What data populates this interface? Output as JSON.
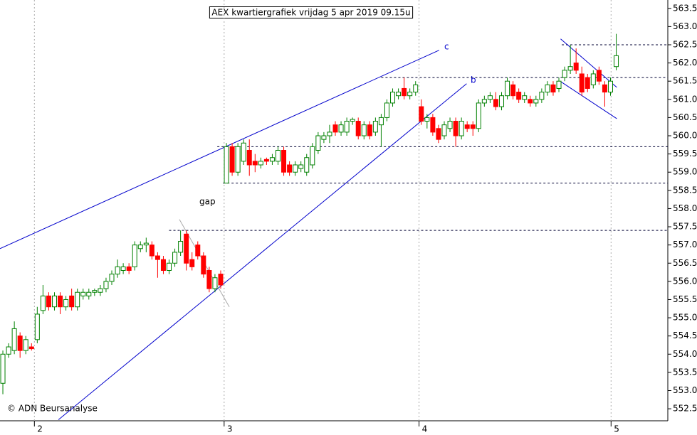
{
  "chart_data": {
    "type": "candlestick",
    "title": "AEX kwartiergrafiek vrijdag 5 apr 2019 09.15u",
    "credit": "© ADN Beursanalyse",
    "annotations": [
      "c",
      "b",
      "gap"
    ],
    "up_color": "#008000",
    "down_color": "#ff0000",
    "x": [
      0,
      1,
      2,
      3,
      4,
      5,
      6,
      7,
      8,
      9,
      10,
      11,
      12,
      13,
      14,
      15,
      16,
      17,
      18,
      19,
      20,
      21,
      22,
      23,
      24,
      25,
      26,
      27,
      28,
      29,
      30,
      31,
      32,
      33,
      34,
      35,
      36,
      37,
      38,
      39,
      40,
      41,
      42,
      43,
      44,
      45,
      46,
      47,
      48,
      49,
      50,
      51,
      52,
      53,
      54,
      55,
      56,
      57,
      58,
      59,
      60,
      61,
      62,
      63,
      64,
      65,
      66,
      67,
      68,
      69,
      70,
      71,
      72,
      73,
      74,
      75,
      76,
      77,
      78,
      79,
      80,
      81,
      82,
      83,
      84,
      85,
      86,
      87,
      88,
      89,
      90,
      91,
      92,
      93,
      94,
      95,
      96,
      97,
      98,
      99,
      100,
      101,
      102,
      103,
      104,
      105,
      106,
      107
    ],
    "open": [
      553.2,
      554.0,
      554.1,
      554.5,
      554.1,
      554.2,
      554.4,
      555.2,
      555.6,
      555.3,
      555.6,
      555.3,
      555.6,
      555.3,
      555.6,
      555.6,
      555.7,
      555.7,
      555.8,
      556.0,
      556.2,
      556.3,
      556.4,
      556.4,
      556.9,
      557.0,
      557.0,
      556.7,
      556.6,
      556.3,
      556.5,
      556.8,
      557.3,
      556.6,
      557.0,
      556.7,
      556.3,
      555.8,
      556.2,
      558.7,
      559.7,
      559.0,
      559.3,
      559.6,
      559.3,
      559.2,
      559.35,
      559.3,
      559.3,
      559.6,
      559.2,
      559.0,
      559.1,
      559.0,
      559.2,
      559.6,
      559.9,
      560.0,
      560.3,
      560.1,
      560.1,
      560.4,
      560.4,
      560.0,
      560.3,
      560.1,
      560.3,
      560.5,
      560.9,
      561.1,
      561.3,
      561.1,
      561.2,
      560.8,
      560.4,
      560.5,
      560.2,
      560.0,
      560.2,
      560.4,
      560.0,
      560.3,
      560.3,
      560.2,
      560.9,
      561.0,
      561.0,
      560.8,
      561.1,
      561.4,
      561.2,
      561.0,
      561.0,
      560.9,
      561.0,
      561.2,
      561.4,
      561.3,
      561.6,
      561.8,
      562.0,
      561.7,
      561.6,
      561.4,
      561.8,
      561.4,
      561.2,
      561.9
    ],
    "high": [
      554.1,
      554.3,
      554.9,
      554.6,
      554.5,
      554.3,
      555.3,
      555.9,
      555.7,
      555.7,
      555.7,
      555.6,
      555.8,
      555.8,
      555.8,
      555.8,
      555.8,
      555.9,
      556.1,
      556.3,
      556.6,
      556.5,
      556.5,
      557.1,
      557.1,
      557.2,
      557.1,
      556.8,
      556.7,
      556.6,
      556.9,
      557.4,
      557.4,
      556.8,
      557.1,
      556.8,
      556.4,
      556.2,
      556.3,
      559.8,
      559.8,
      559.8,
      559.9,
      559.9,
      559.5,
      559.4,
      559.4,
      559.5,
      559.7,
      559.7,
      559.3,
      559.3,
      559.3,
      559.5,
      559.8,
      560.1,
      560.1,
      560.3,
      560.4,
      560.4,
      560.5,
      560.5,
      560.5,
      560.4,
      560.4,
      560.5,
      560.6,
      561.0,
      561.3,
      561.3,
      561.6,
      561.3,
      561.5,
      561.0,
      560.6,
      560.6,
      560.3,
      560.4,
      560.5,
      560.5,
      560.5,
      560.4,
      560.4,
      561.0,
      561.1,
      561.2,
      561.2,
      561.2,
      561.6,
      561.5,
      561.3,
      561.2,
      561.1,
      561.1,
      561.3,
      561.5,
      561.5,
      561.6,
      561.9,
      562.5,
      562.4,
      561.9,
      561.7,
      561.8,
      561.9,
      561.5,
      561.6,
      562.8
    ],
    "low": [
      552.9,
      553.9,
      554.0,
      553.9,
      554.0,
      554.1,
      554.3,
      555.1,
      555.2,
      555.2,
      555.1,
      555.2,
      555.2,
      555.2,
      555.5,
      555.5,
      555.6,
      555.6,
      555.7,
      555.9,
      556.1,
      556.2,
      556.2,
      556.3,
      556.8,
      556.8,
      556.6,
      556.1,
      556.2,
      556.2,
      556.4,
      556.7,
      556.3,
      556.3,
      556.6,
      556.1,
      555.7,
      555.7,
      555.8,
      558.7,
      558.9,
      558.9,
      559.2,
      558.9,
      559.0,
      559.1,
      559.2,
      559.2,
      559.2,
      558.9,
      558.9,
      558.9,
      559.0,
      558.9,
      559.1,
      559.5,
      559.8,
      559.8,
      560.0,
      560.0,
      560.0,
      560.3,
      559.9,
      559.9,
      559.9,
      560.0,
      559.7,
      560.4,
      560.8,
      561.0,
      561.0,
      561.0,
      561.1,
      560.3,
      560.2,
      560.0,
      559.8,
      559.9,
      560.1,
      559.7,
      559.9,
      560.1,
      560.0,
      560.1,
      560.8,
      560.9,
      560.7,
      560.7,
      561.0,
      561.0,
      560.9,
      560.9,
      560.8,
      560.8,
      560.9,
      561.1,
      561.1,
      561.2,
      561.5,
      561.7,
      561.7,
      561.1,
      561.2,
      561.3,
      561.4,
      560.8,
      561.1,
      561.8
    ],
    "close": [
      554.0,
      554.2,
      554.7,
      554.1,
      554.4,
      554.15,
      555.1,
      555.6,
      555.3,
      555.6,
      555.3,
      555.5,
      555.3,
      555.7,
      555.7,
      555.7,
      555.75,
      555.8,
      556.0,
      556.2,
      556.4,
      556.4,
      556.3,
      557.0,
      557.0,
      557.05,
      556.7,
      556.6,
      556.3,
      556.5,
      556.8,
      557.1,
      556.5,
      556.4,
      556.7,
      556.2,
      555.8,
      556.1,
      555.9,
      559.7,
      559.0,
      559.7,
      559.8,
      559.2,
      559.2,
      559.3,
      559.3,
      559.4,
      559.6,
      559.0,
      559.0,
      559.2,
      559.2,
      559.4,
      559.7,
      560.0,
      560.0,
      560.1,
      560.1,
      560.3,
      560.4,
      560.45,
      560.0,
      560.3,
      560.0,
      560.4,
      560.5,
      560.9,
      561.2,
      561.2,
      561.1,
      561.2,
      561.4,
      560.4,
      560.5,
      560.1,
      559.9,
      560.3,
      560.4,
      560.0,
      560.4,
      560.2,
      560.2,
      560.9,
      561.0,
      561.1,
      560.8,
      561.1,
      561.5,
      561.1,
      561.0,
      561.1,
      560.9,
      561.0,
      561.2,
      561.4,
      561.2,
      561.5,
      561.8,
      561.9,
      561.8,
      561.2,
      561.3,
      561.7,
      561.5,
      561.2,
      561.5,
      562.2
    ],
    "xlim": [
      -0.5,
      116
    ],
    "xticks": [
      {
        "value": 5.5,
        "label": "2"
      },
      {
        "value": 38.6,
        "label": "3"
      },
      {
        "value": 72.6,
        "label": "4"
      },
      {
        "value": 106.1,
        "label": "5"
      }
    ],
    "ylim": [
      552.17,
      563.73
    ],
    "yticks": [
      552.5,
      {
        "value": 553,
        "label": "553.0"
      },
      553.5,
      {
        "value": 554,
        "label": "554.0"
      },
      554.5,
      {
        "value": 555,
        "label": "555.0"
      },
      555.5,
      {
        "value": 556,
        "label": "556.0"
      },
      556.5,
      {
        "value": 557,
        "label": "557.0"
      },
      557.5,
      {
        "value": 558,
        "label": "558.0"
      },
      558.5,
      {
        "value": 559,
        "label": "559.0"
      },
      559.5,
      {
        "value": 560,
        "label": "560.0"
      },
      560.5,
      {
        "value": 561,
        "label": "561.0"
      },
      561.5,
      {
        "value": 562,
        "label": "562.0"
      },
      562.5,
      {
        "value": 563,
        "label": "563.0"
      },
      563.5
    ],
    "grid": true,
    "levels": [
      {
        "value": 562.5,
        "x_start": 97.5
      },
      {
        "value": 561.6,
        "x_start": 66
      },
      {
        "value": 559.7,
        "x_start": 37.4
      },
      {
        "value": 558.7,
        "x_start": 38.4
      },
      {
        "value": 557.4,
        "x_start": 29
      }
    ],
    "trendlines": [
      {
        "x": [
          -0.5,
          76.1
        ],
        "y": [
          556.9,
          562.35
        ],
        "color": "#0000cc"
      },
      {
        "x": [
          9.7,
          80.9
        ],
        "y": [
          552.2,
          561.43
        ],
        "color": "#0000cc"
      },
      {
        "x": [
          30.8,
          39.5
        ],
        "y": [
          557.7,
          555.3
        ],
        "color": "#aaaaaa"
      },
      {
        "x": [
          97.3,
          107.1
        ],
        "y": [
          562.66,
          561.33
        ],
        "color": "#0000cc"
      },
      {
        "x": [
          97.3,
          107.1
        ],
        "y": [
          561.49,
          560.47
        ],
        "color": "#0000cc"
      }
    ]
  }
}
